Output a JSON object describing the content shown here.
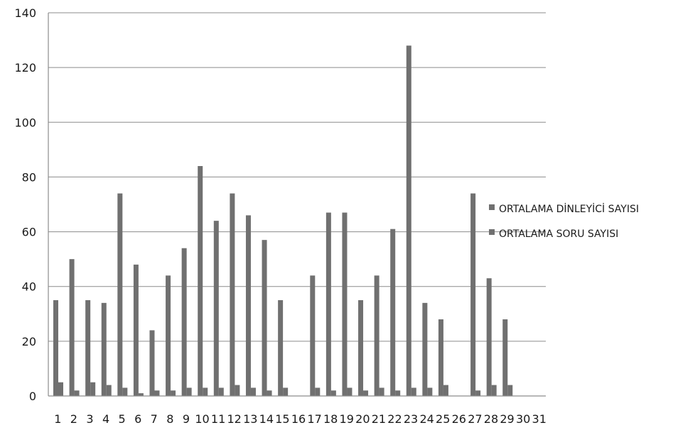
{
  "chart_data": {
    "type": "bar",
    "title": "",
    "xlabel": "",
    "ylabel": "",
    "ylim": [
      0,
      140
    ],
    "yticks": [
      0,
      20,
      40,
      60,
      80,
      100,
      120,
      140
    ],
    "grid": true,
    "legend_position": "right",
    "categories": [
      "1",
      "2",
      "3",
      "4",
      "5",
      "6",
      "7",
      "8",
      "9",
      "10",
      "11",
      "12",
      "13",
      "14",
      "15",
      "16",
      "17",
      "18",
      "19",
      "20",
      "21",
      "22",
      "23",
      "24",
      "25",
      "26",
      "27",
      "28",
      "29",
      "30",
      "31"
    ],
    "series": [
      {
        "name": "ORTALAMA DİNLEYİCİ SAYISI",
        "color": "#707070",
        "values": [
          35,
          50,
          35,
          34,
          74,
          48,
          24,
          44,
          54,
          84,
          64,
          74,
          66,
          57,
          35,
          0,
          44,
          67,
          67,
          35,
          44,
          61,
          128,
          34,
          28,
          0,
          74,
          43,
          28,
          0,
          0
        ]
      },
      {
        "name": "ORTALAMA SORU SAYISI",
        "color": "#707070",
        "values": [
          5,
          2,
          5,
          4,
          3,
          1,
          2,
          2,
          3,
          3,
          3,
          4,
          3,
          2,
          3,
          0,
          3,
          2,
          3,
          2,
          3,
          2,
          3,
          3,
          4,
          0,
          2,
          4,
          4,
          0,
          0
        ]
      }
    ]
  }
}
